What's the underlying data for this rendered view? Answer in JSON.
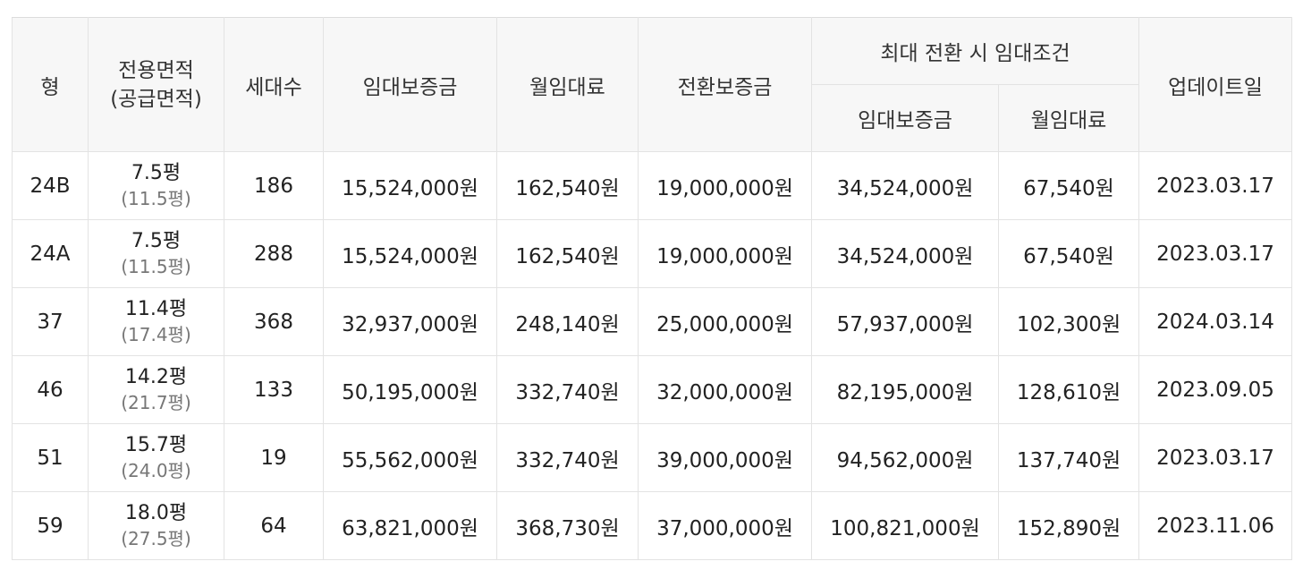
{
  "header": {
    "type": "형",
    "area_line1": "전용면적",
    "area_line2": "(공급면적)",
    "households": "세대수",
    "deposit": "임대보증금",
    "monthly": "월임대료",
    "conversion_deposit": "전환보증금",
    "max_conversion": "최대 전환 시 임대조건",
    "max_deposit": "임대보증금",
    "max_monthly": "월임대료",
    "updated": "업데이트일"
  },
  "rows": [
    {
      "type": "24B",
      "area": "7.5평",
      "supply": "(11.5평)",
      "households": "186",
      "deposit": "15,524,000원",
      "monthly": "162,540원",
      "conversion": "19,000,000원",
      "max_deposit": "34,524,000원",
      "max_monthly": "67,540원",
      "updated": "2023.03.17"
    },
    {
      "type": "24A",
      "area": "7.5평",
      "supply": "(11.5평)",
      "households": "288",
      "deposit": "15,524,000원",
      "monthly": "162,540원",
      "conversion": "19,000,000원",
      "max_deposit": "34,524,000원",
      "max_monthly": "67,540원",
      "updated": "2023.03.17"
    },
    {
      "type": "37",
      "area": "11.4평",
      "supply": "(17.4평)",
      "households": "368",
      "deposit": "32,937,000원",
      "monthly": "248,140원",
      "conversion": "25,000,000원",
      "max_deposit": "57,937,000원",
      "max_monthly": "102,300원",
      "updated": "2024.03.14"
    },
    {
      "type": "46",
      "area": "14.2평",
      "supply": "(21.7평)",
      "households": "133",
      "deposit": "50,195,000원",
      "monthly": "332,740원",
      "conversion": "32,000,000원",
      "max_deposit": "82,195,000원",
      "max_monthly": "128,610원",
      "updated": "2023.09.05"
    },
    {
      "type": "51",
      "area": "15.7평",
      "supply": "(24.0평)",
      "households": "19",
      "deposit": "55,562,000원",
      "monthly": "332,740원",
      "conversion": "39,000,000원",
      "max_deposit": "94,562,000원",
      "max_monthly": "137,740원",
      "updated": "2023.03.17"
    },
    {
      "type": "59",
      "area": "18.0평",
      "supply": "(27.5평)",
      "households": "64",
      "deposit": "63,821,000원",
      "monthly": "368,730원",
      "conversion": "37,000,000원",
      "max_deposit": "100,821,000원",
      "max_monthly": "152,890원",
      "updated": "2023.11.06"
    }
  ]
}
